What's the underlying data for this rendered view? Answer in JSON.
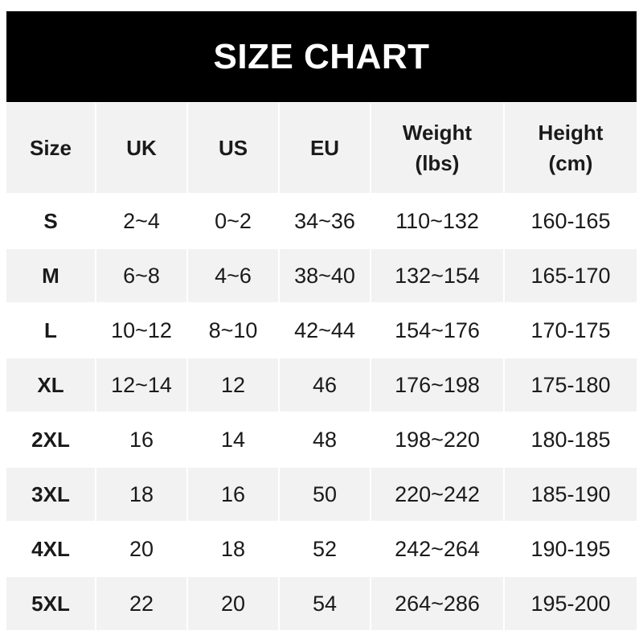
{
  "title": "SIZE CHART",
  "headers": [
    "Size",
    "UK",
    "US",
    "EU",
    "Weight\n(lbs)",
    "Height\n(cm)"
  ],
  "rows": [
    [
      "S",
      "2~4",
      "0~2",
      "34~36",
      "110~132",
      "160-165"
    ],
    [
      "M",
      "6~8",
      "4~6",
      "38~40",
      "132~154",
      "165-170"
    ],
    [
      "L",
      "10~12",
      "8~10",
      "42~44",
      "154~176",
      "170-175"
    ],
    [
      "XL",
      "12~14",
      "12",
      "46",
      "176~198",
      "175-180"
    ],
    [
      "2XL",
      "16",
      "14",
      "48",
      "198~220",
      "180-185"
    ],
    [
      "3XL",
      "18",
      "16",
      "50",
      "220~242",
      "185-190"
    ],
    [
      "4XL",
      "20",
      "18",
      "52",
      "242~264",
      "190-195"
    ],
    [
      "5XL",
      "22",
      "20",
      "54",
      "264~286",
      "195-200"
    ]
  ],
  "colors": {
    "title_bg": "#000000",
    "header_bg": "#f2f2f2",
    "stripe_bg": "#f2f2f2"
  }
}
